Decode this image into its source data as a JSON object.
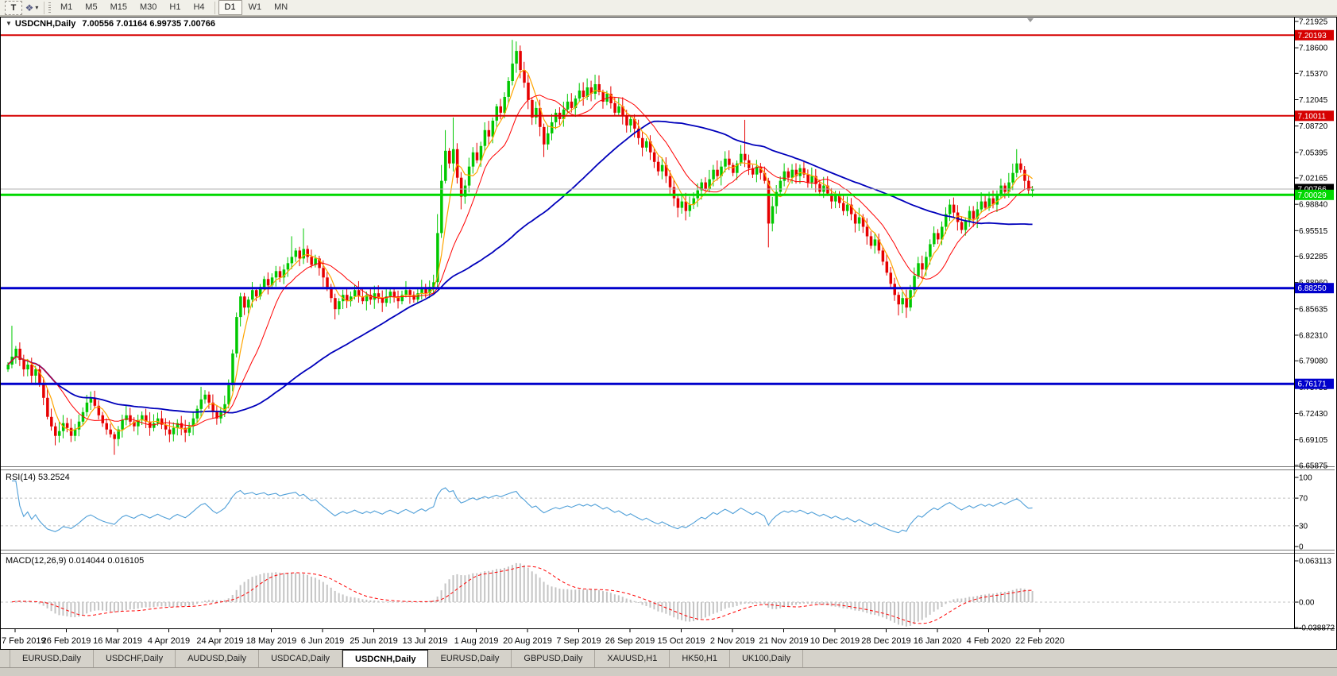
{
  "toolbar": {
    "text_tool_label": "T",
    "colors_tool_icon": "indicator-properties",
    "timeframes": [
      "M1",
      "M5",
      "M15",
      "M30",
      "H1",
      "H4",
      "D1",
      "W1",
      "MN"
    ],
    "active_timeframe": "D1"
  },
  "chart": {
    "title": {
      "symbol": "USDCNH,Daily",
      "ohlc": "7.00556 7.01164 6.99735 7.00766",
      "open": "7.00556",
      "high": "7.01164",
      "low": "6.99735",
      "close": "7.00766"
    },
    "colors": {
      "bullish_candle": "#00c800",
      "bearish_candle": "#e60000",
      "ma_fast": "#ffa500",
      "ma_mid": "#ff0000",
      "ma_slow": "#0000bb",
      "axis_text": "#000000",
      "background": "#ffffff"
    },
    "price_axis_ticks": [
      "7.21925",
      "7.18600",
      "7.15370",
      "7.12045",
      "7.08720",
      "7.05395",
      "7.02165",
      "6.98840",
      "6.95515",
      "6.92285",
      "6.88960",
      "6.85635",
      "6.82310",
      "6.79080",
      "6.75755",
      "6.72430",
      "6.69105",
      "6.65875"
    ],
    "levels": [
      {
        "price": 7.20193,
        "label": "7.20193",
        "color": "#d60000",
        "width": 2
      },
      {
        "price": 7.10011,
        "label": "7.10011",
        "color": "#d60000",
        "width": 2
      },
      {
        "price": 7.00029,
        "label": "7.00029",
        "color": "#00d800",
        "width": 3
      },
      {
        "price": 6.8825,
        "label": "6.88250",
        "color": "#0000cc",
        "width": 3
      },
      {
        "price": 6.76171,
        "label": "6.76171",
        "color": "#0000cc",
        "width": 3
      }
    ],
    "current_price": {
      "value": 7.00766,
      "label": "7.00766",
      "line_color": "#b0b0b0",
      "badge_color": "#000000"
    },
    "date_axis": [
      "7 Feb 2019",
      "26 Feb 2019",
      "16 Mar 2019",
      "4 Apr 2019",
      "24 Apr 2019",
      "18 May 2019",
      "6 Jun 2019",
      "25 Jun 2019",
      "13 Jul 2019",
      "1 Aug 2019",
      "20 Aug 2019",
      "7 Sep 2019",
      "26 Sep 2019",
      "15 Oct 2019",
      "2 Nov 2019",
      "21 Nov 2019",
      "10 Dec 2019",
      "28 Dec 2019",
      "16 Jan 2020",
      "4 Feb 2020",
      "22 Feb 2020"
    ]
  },
  "rsi_panel": {
    "label": "RSI(14) 53.2524",
    "value": "53.2524",
    "level_labels": [
      "100",
      "70",
      "30",
      "0"
    ],
    "levels_dashed": [
      70,
      30
    ],
    "line_color": "#4f9fd8"
  },
  "macd_panel": {
    "label": "MACD(12,26,9) 0.014044 0.016105",
    "macd_value": "0.014044",
    "signal_value": "0.016105",
    "axis_ticks": [
      "0.063113",
      "0.00",
      "-0.038872"
    ],
    "histogram_color": "#c4c4c4",
    "signal_color": "#ff0000"
  },
  "chart_data": {
    "type": "candlestick",
    "symbol": "USDCNH",
    "timeframe": "Daily",
    "x_range": [
      "7 Feb 2019",
      "22 Feb 2020"
    ],
    "price_range": [
      6.65875,
      7.21925
    ],
    "first_open": 6.78,
    "closes": [
      6.786,
      6.796,
      6.806,
      6.792,
      6.78,
      6.786,
      6.772,
      6.78,
      6.762,
      6.744,
      6.72,
      6.708,
      6.696,
      6.702,
      6.712,
      6.706,
      6.696,
      6.704,
      6.714,
      6.726,
      6.738,
      6.744,
      6.734,
      6.722,
      6.712,
      6.704,
      6.698,
      6.692,
      6.704,
      6.716,
      6.722,
      6.714,
      6.708,
      6.716,
      6.722,
      6.714,
      6.706,
      6.712,
      6.718,
      6.71,
      6.704,
      6.698,
      6.706,
      6.712,
      6.706,
      6.7,
      6.708,
      6.718,
      6.73,
      6.742,
      6.748,
      6.738,
      6.726,
      6.718,
      6.726,
      6.736,
      6.76,
      6.8,
      6.846,
      6.872,
      6.858,
      6.868,
      6.88,
      6.872,
      6.884,
      6.894,
      6.886,
      6.896,
      6.904,
      6.896,
      6.906,
      6.914,
      6.922,
      6.93,
      6.92,
      6.932,
      6.922,
      6.912,
      6.92,
      6.908,
      6.896,
      6.884,
      6.87,
      6.856,
      6.866,
      6.874,
      6.866,
      6.872,
      6.88,
      6.872,
      6.866,
      6.874,
      6.868,
      6.876,
      6.87,
      6.864,
      6.872,
      6.878,
      6.872,
      6.866,
      6.874,
      6.88,
      6.874,
      6.868,
      6.876,
      6.882,
      6.876,
      6.884,
      6.89,
      6.952,
      7.018,
      7.056,
      7.04,
      7.058,
      7.022,
      6.998,
      7.012,
      7.036,
      7.054,
      7.044,
      7.062,
      7.082,
      7.074,
      7.094,
      7.112,
      7.104,
      7.124,
      7.144,
      7.166,
      7.182,
      7.158,
      7.142,
      7.12,
      7.098,
      7.11,
      7.086,
      7.064,
      7.078,
      7.092,
      7.104,
      7.096,
      7.108,
      7.118,
      7.11,
      7.122,
      7.132,
      7.124,
      7.136,
      7.128,
      7.14,
      7.13,
      7.118,
      7.128,
      7.116,
      7.104,
      7.112,
      7.1,
      7.088,
      7.096,
      7.084,
      7.072,
      7.06,
      7.068,
      7.054,
      7.042,
      7.03,
      7.038,
      7.024,
      7.01,
      6.996,
      6.984,
      6.992,
      6.98,
      6.988,
      6.996,
      7.006,
      7.016,
      7.008,
      7.02,
      7.032,
      7.024,
      7.036,
      7.046,
      7.038,
      7.028,
      7.04,
      7.052,
      7.044,
      7.034,
      7.026,
      7.036,
      7.028,
      7.018,
      6.964,
      6.986,
      7.004,
      7.018,
      7.03,
      7.022,
      7.032,
      7.024,
      7.034,
      7.026,
      7.016,
      7.024,
      7.014,
      7.004,
      7.012,
      7.002,
      6.992,
      7.0,
      6.99,
      6.98,
      6.988,
      6.976,
      6.964,
      6.972,
      6.96,
      6.948,
      6.936,
      6.944,
      6.93,
      6.916,
      6.902,
      6.888,
      6.874,
      6.862,
      6.87,
      6.858,
      6.88,
      6.898,
      6.914,
      6.906,
      6.922,
      6.938,
      6.952,
      6.944,
      6.96,
      6.976,
      6.988,
      6.978,
      6.966,
      6.956,
      6.968,
      6.98,
      6.97,
      6.982,
      6.992,
      6.984,
      6.996,
      6.988,
      7.0,
      7.012,
      7.004,
      7.016,
      7.028,
      7.04,
      7.032,
      7.018,
      7.006,
      7.00766
    ],
    "wick_overrides": {
      "1": {
        "h": 6.835
      },
      "12": {
        "l": 6.684
      },
      "27": {
        "l": 6.672
      },
      "41": {
        "l": 6.688
      },
      "49": {
        "h": 6.758
      },
      "72": {
        "h": 6.948
      },
      "75": {
        "h": 6.958
      },
      "83": {
        "l": 6.843
      },
      "109": {
        "h": 6.976,
        "l": 6.884
      },
      "110": {
        "h": 7.038
      },
      "111": {
        "h": 7.082
      },
      "113": {
        "h": 7.098
      },
      "115": {
        "l": 6.982
      },
      "128": {
        "h": 7.196
      },
      "129": {
        "h": 7.194
      },
      "136": {
        "l": 7.048
      },
      "149": {
        "h": 7.152
      },
      "170": {
        "l": 6.972
      },
      "187": {
        "h": 7.095
      },
      "193": {
        "l": 6.934
      },
      "226": {
        "l": 6.848
      },
      "228": {
        "l": 6.845
      },
      "256": {
        "h": 7.058
      },
      "260": {
        "o": 7.00556,
        "h": 7.01164,
        "l": 6.99735
      }
    },
    "moving_averages": [
      {
        "name": "MA fast",
        "period": 5,
        "color": "#ffa500"
      },
      {
        "name": "MA mid",
        "period": 13,
        "color": "#ff0000"
      },
      {
        "name": "MA slow",
        "period": 55,
        "color": "#0000bb"
      }
    ],
    "indicators": [
      {
        "name": "RSI",
        "period": 14,
        "current": 53.2524,
        "levels": [
          70,
          30
        ],
        "range": [
          0,
          100
        ]
      },
      {
        "name": "MACD",
        "params": [
          12,
          26,
          9
        ],
        "macd": 0.014044,
        "signal": 0.016105,
        "axis": [
          0.063113,
          0.0,
          -0.038872
        ]
      }
    ]
  },
  "tabs": [
    {
      "label": "EURUSD,Daily",
      "active": false
    },
    {
      "label": "USDCHF,Daily",
      "active": false
    },
    {
      "label": "AUDUSD,Daily",
      "active": false
    },
    {
      "label": "USDCAD,Daily",
      "active": false
    },
    {
      "label": "USDCNH,Daily",
      "active": true
    },
    {
      "label": "EURUSD,Daily",
      "active": false
    },
    {
      "label": "GBPUSD,Daily",
      "active": false
    },
    {
      "label": "XAUUSD,H1",
      "active": false
    },
    {
      "label": "HK50,H1",
      "active": false
    },
    {
      "label": "UK100,Daily",
      "active": false
    }
  ]
}
